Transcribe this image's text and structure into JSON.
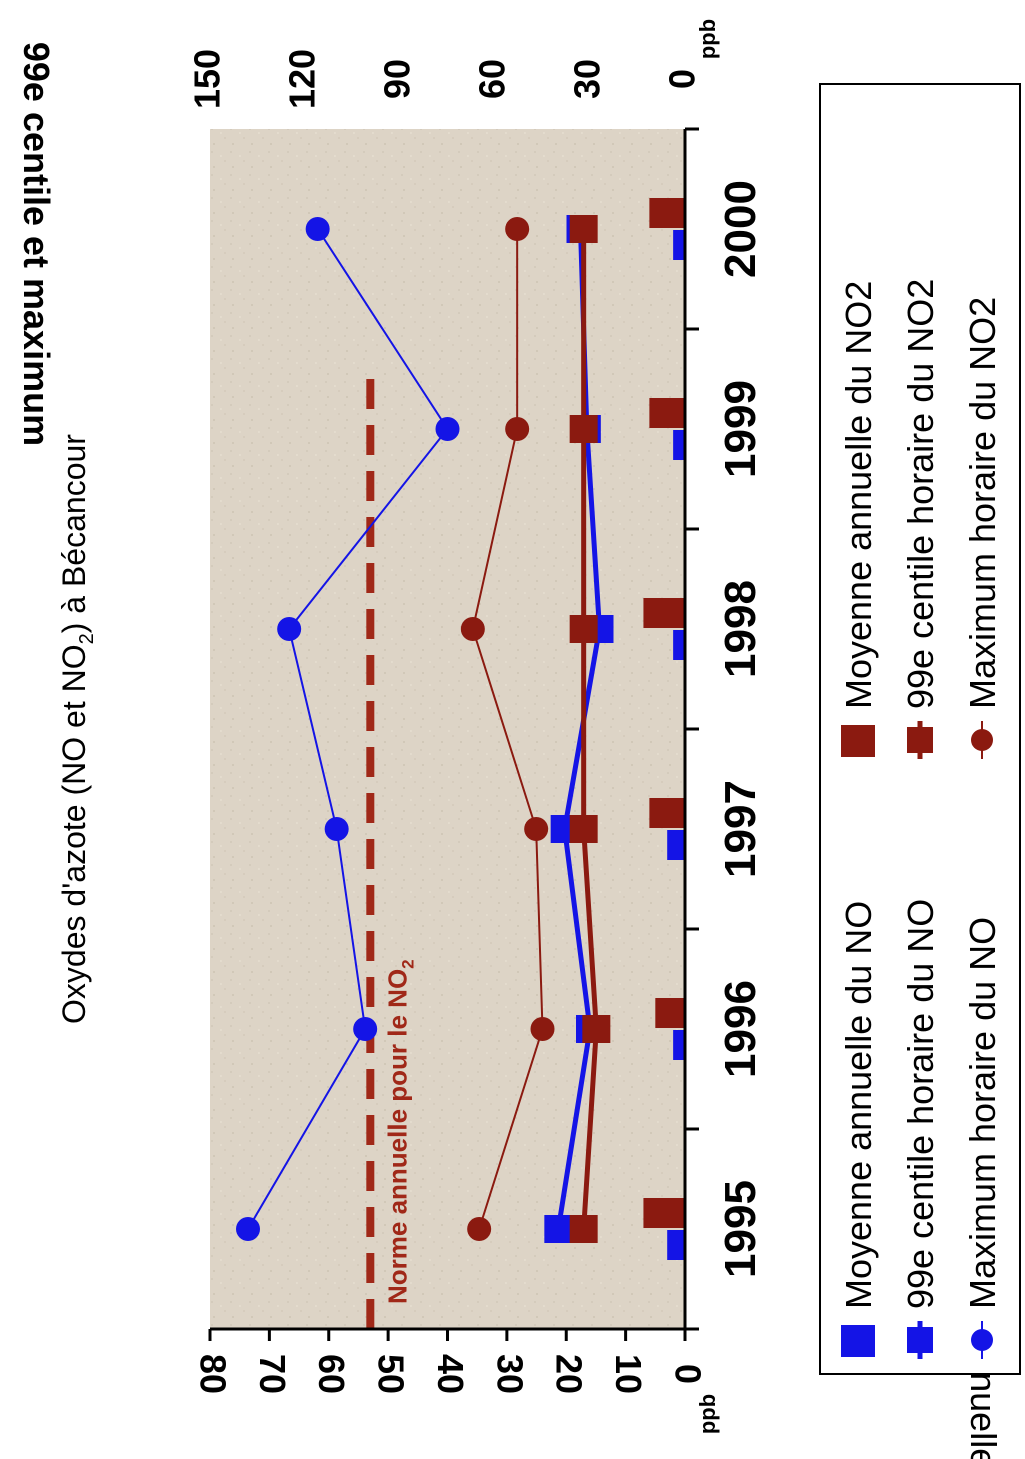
{
  "chart_data": {
    "type": "bar",
    "title": "Oxydes d'azote (NO et NO",
    "title_sub": "2",
    "title_tail": ") à Bécancour",
    "categories": [
      "1995",
      "1996",
      "1997",
      "1998",
      "1999",
      "2000"
    ],
    "left_axis": {
      "label": "Moyenne annuelle",
      "unit": "ppb",
      "range": [
        0,
        80
      ],
      "ticks": [
        "0",
        "10",
        "20",
        "30",
        "40",
        "50",
        "60",
        "70",
        "80"
      ]
    },
    "right_axis": {
      "label": "99e centile et maximum",
      "unit": "ppb",
      "range": [
        0,
        150
      ],
      "ticks": [
        "0",
        "30",
        "60",
        "90",
        "120",
        "150"
      ]
    },
    "series": [
      {
        "name": "Moyenne annuelle du NO",
        "kind": "bar",
        "axis": "left",
        "color": "#1414e6",
        "values": [
          3,
          2,
          3,
          2,
          2,
          2
        ]
      },
      {
        "name": "99e centile horaire  du NO",
        "kind": "line-square",
        "axis": "right",
        "color": "#1414e6",
        "values": [
          40,
          30,
          38,
          27,
          31,
          33
        ]
      },
      {
        "name": "Maximum horaire du NO",
        "kind": "line-circle",
        "axis": "right",
        "color": "#1414e6",
        "values": [
          138,
          101,
          110,
          125,
          75,
          116
        ]
      },
      {
        "name": "Moyenne annuelle du NO2",
        "kind": "bar",
        "axis": "left",
        "color": "#8b1a10",
        "values": [
          7,
          5,
          6,
          7,
          6,
          6
        ]
      },
      {
        "name": "99e centile horaire du NO2",
        "kind": "line-square",
        "axis": "right",
        "color": "#8b1a10",
        "values": [
          32,
          28,
          32,
          32,
          32,
          32
        ]
      },
      {
        "name": "Maximum horaire du NO2",
        "kind": "line-circle",
        "axis": "right",
        "color": "#8b1a10",
        "values": [
          65,
          45,
          47,
          67,
          53,
          53
        ]
      }
    ],
    "annotation": {
      "text": "Norme annuelle pour le NO",
      "sub": "2",
      "value": 53,
      "axis": "left",
      "color": "#a02818"
    },
    "grid": false,
    "legend_position": "bottom",
    "background": "#ddd4c6"
  }
}
